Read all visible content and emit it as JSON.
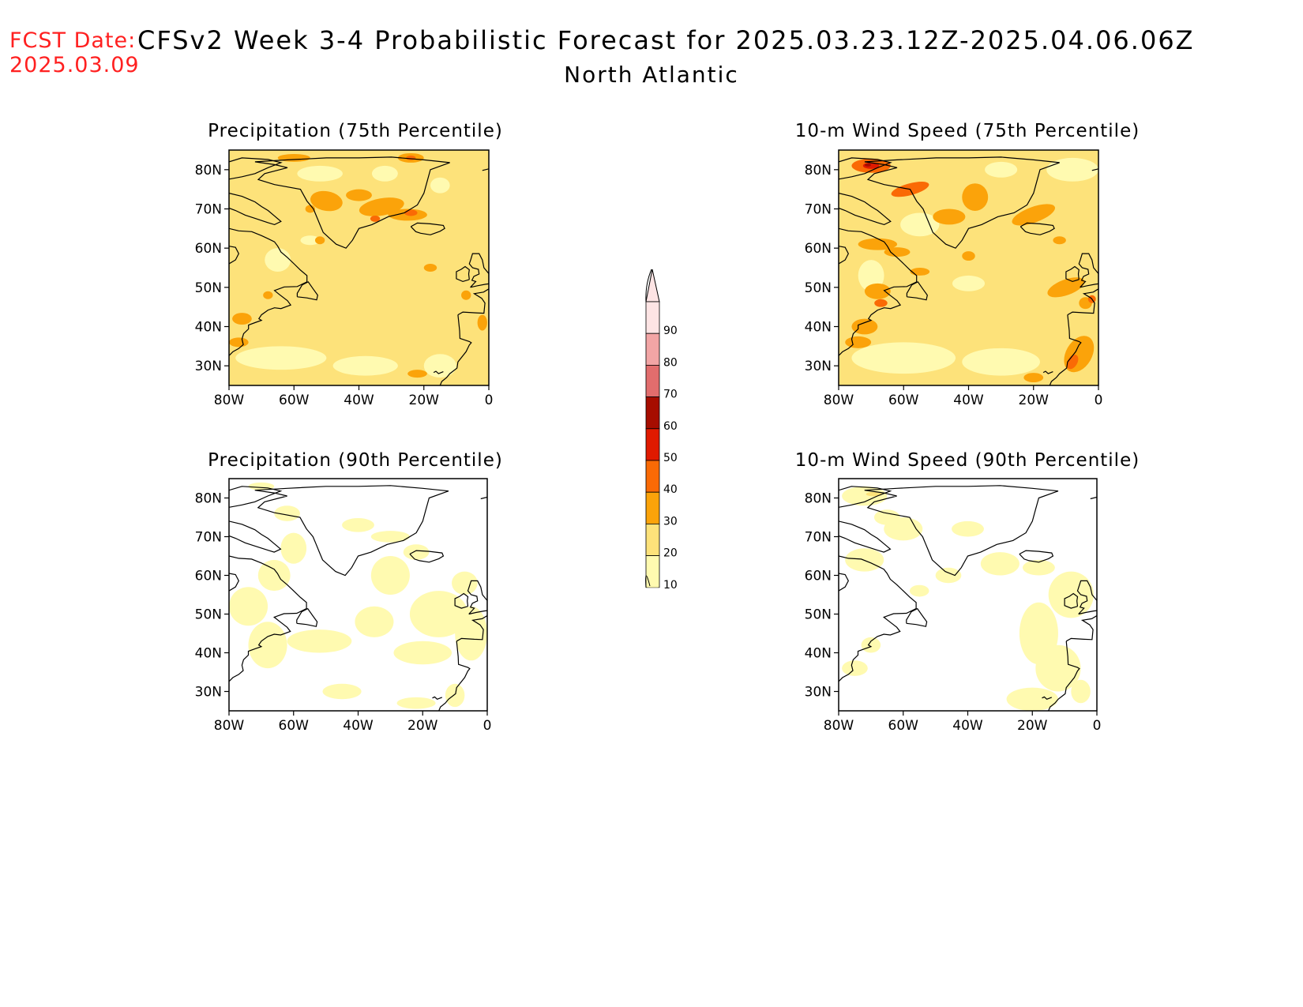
{
  "header": {
    "fcst_label": "FCST Date:",
    "fcst_date": "2025.03.09",
    "title": "CFSv2 Week 3-4 Probabilistic Forecast for 2025.03.23.12Z-2025.04.06.06Z",
    "region": "North Atlantic"
  },
  "colors": {
    "c10": "#fffab0",
    "c20": "#fde27a",
    "c30": "#fba30a",
    "c40": "#fa6a05",
    "c50": "#e01a00",
    "c60": "#a60d00",
    "c70": "#e26d6d",
    "c80": "#f2a5a5",
    "c90": "#fde4e4",
    "coast": "#000000"
  },
  "panels": [
    {
      "title": "Precipitation (75th Percentile)",
      "xticks": [
        "80W",
        "60W",
        "40W",
        "20W",
        "0"
      ],
      "yticks": [
        "80N",
        "70N",
        "60N",
        "50N",
        "40N",
        "30N"
      ],
      "base_level": 20
    },
    {
      "title": "10-m Wind Speed (75th Percentile)",
      "xticks": [
        "80W",
        "60W",
        "40W",
        "20W",
        "0"
      ],
      "yticks": [
        "80N",
        "70N",
        "60N",
        "50N",
        "40N",
        "30N"
      ],
      "base_level": 20
    },
    {
      "title": "Precipitation (90th Percentile)",
      "xticks": [
        "80W",
        "60W",
        "40W",
        "20W",
        "0"
      ],
      "yticks": [
        "80N",
        "70N",
        "60N",
        "50N",
        "40N",
        "30N"
      ],
      "base_level": 0
    },
    {
      "title": "10-m Wind Speed (90th Percentile)",
      "xticks": [
        "80W",
        "60W",
        "40W",
        "20W",
        "0"
      ],
      "yticks": [
        "80N",
        "70N",
        "60N",
        "50N",
        "40N",
        "30N"
      ],
      "base_level": 0
    }
  ],
  "colorbar": {
    "labels": [
      "10",
      "20",
      "30",
      "40",
      "50",
      "60",
      "70",
      "80",
      "90"
    ]
  }
}
